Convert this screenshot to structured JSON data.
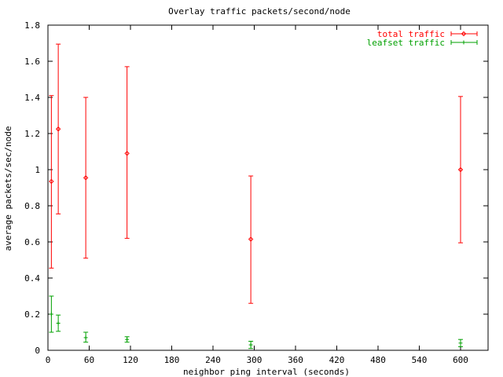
{
  "chart_data": {
    "type": "scatter",
    "title": "Overlay traffic packets/second/node",
    "xlabel": "neighbor ping interval (seconds)",
    "ylabel": "average packets/sec/node",
    "xlim": [
      0,
      640
    ],
    "ylim": [
      0,
      1.8
    ],
    "x_ticks": [
      0,
      60,
      120,
      180,
      240,
      300,
      360,
      420,
      480,
      540,
      600
    ],
    "y_ticks": [
      0,
      0.2,
      0.4,
      0.6,
      0.8,
      1,
      1.2,
      1.4,
      1.6,
      1.8
    ],
    "x_tick_labels": [
      "0",
      "60",
      "120",
      "180",
      "240",
      "300",
      "360",
      "420",
      "480",
      "540",
      "600"
    ],
    "y_tick_labels": [
      "0",
      "0.2",
      "0.4",
      "0.6",
      "0.8",
      "1",
      "1.2",
      "1.4",
      "1.6",
      "1.8"
    ],
    "grid": false,
    "legend_position": "top-right",
    "series": [
      {
        "name": "total traffic",
        "color": "#ff0000",
        "marker": "diamond",
        "points": [
          {
            "x": 5,
            "y": 0.935,
            "low": 0.455,
            "high": 1.41
          },
          {
            "x": 15,
            "y": 1.225,
            "low": 0.755,
            "high": 1.695
          },
          {
            "x": 55,
            "y": 0.955,
            "low": 0.51,
            "high": 1.4
          },
          {
            "x": 115,
            "y": 1.09,
            "low": 0.62,
            "high": 1.57
          },
          {
            "x": 295,
            "y": 0.615,
            "low": 0.26,
            "high": 0.965
          },
          {
            "x": 600,
            "y": 1.0,
            "low": 0.595,
            "high": 1.405
          }
        ]
      },
      {
        "name": "leafset traffic",
        "color": "#00a000",
        "marker": "plus",
        "points": [
          {
            "x": 5,
            "y": 0.2,
            "low": 0.1,
            "high": 0.3
          },
          {
            "x": 15,
            "y": 0.15,
            "low": 0.105,
            "high": 0.195
          },
          {
            "x": 55,
            "y": 0.07,
            "low": 0.045,
            "high": 0.1
          },
          {
            "x": 115,
            "y": 0.06,
            "low": 0.045,
            "high": 0.075
          },
          {
            "x": 295,
            "y": 0.03,
            "low": 0.01,
            "high": 0.05
          },
          {
            "x": 600,
            "y": 0.04,
            "low": 0.02,
            "high": 0.06
          }
        ]
      }
    ]
  }
}
